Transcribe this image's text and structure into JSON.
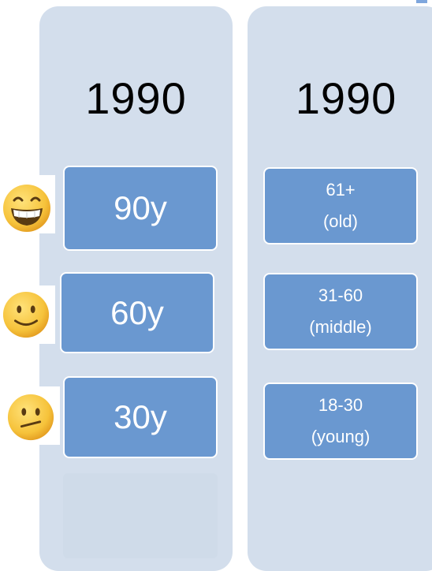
{
  "columns": [
    {
      "year": "1990",
      "boxes": [
        {
          "label": "90y"
        },
        {
          "label": "60y"
        },
        {
          "label": "30y"
        }
      ]
    },
    {
      "year": "1990",
      "boxes": [
        {
          "line1": "61+",
          "line2": "(old)"
        },
        {
          "line1": "31-60",
          "line2": "(middle)"
        },
        {
          "line1": "18-30",
          "line2": "(young)"
        }
      ]
    }
  ],
  "faces": [
    {
      "icon": "grinning-face-icon"
    },
    {
      "icon": "slightly-smiling-face-icon"
    },
    {
      "icon": "confused-face-icon"
    }
  ],
  "colors": {
    "column_bg": "#d3deec",
    "box_fill": "#6a98d0",
    "box_text": "#ffffff",
    "year_text": "#000000",
    "emoji_yellow": "#f6c33b"
  }
}
